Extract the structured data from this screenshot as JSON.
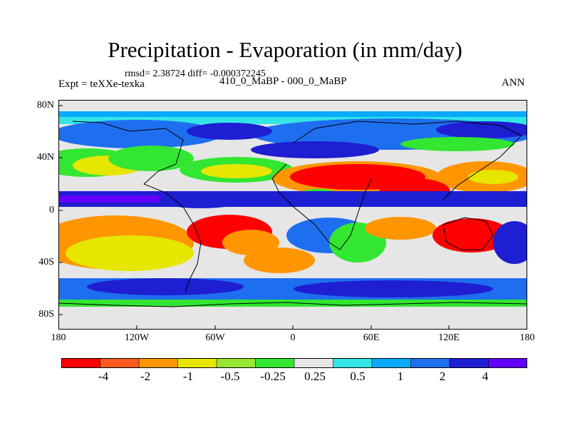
{
  "title": "Precipitation - Evaporation (in mm/day)",
  "stats": "rmsd= 2.38724 diff= -0.000372245",
  "left_label": "Expt = teXXe-texka",
  "center_label": "410_0_MaBP - 000_0_MaBP",
  "right_label": "ANN",
  "y_ticks": [
    "80N",
    "40N",
    "0",
    "40S",
    "80S"
  ],
  "x_ticks": [
    "180",
    "120W",
    "60W",
    "0",
    "60E",
    "120E",
    "180"
  ],
  "colorbar": {
    "colors": [
      "#ff0000",
      "#ff5a1e",
      "#ff9600",
      "#e6e600",
      "#96e632",
      "#32e632",
      "#e6e6e6",
      "#32e6e6",
      "#0aaaff",
      "#1e6ef0",
      "#1e1ed2",
      "#6400ff"
    ],
    "labels": [
      "-4",
      "-2",
      "-1",
      "-0.5",
      "-0.25",
      "0.25",
      "0.5",
      "1",
      "2",
      "4"
    ]
  },
  "chart_data": {
    "type": "heatmap",
    "title": "Precipitation - Evaporation (in mm/day)",
    "xlim": [
      -180,
      180
    ],
    "ylim": [
      -90,
      90
    ],
    "levels": [
      -4,
      -2,
      -1,
      -0.5,
      -0.25,
      0.25,
      0.5,
      1,
      2,
      4
    ]
  }
}
